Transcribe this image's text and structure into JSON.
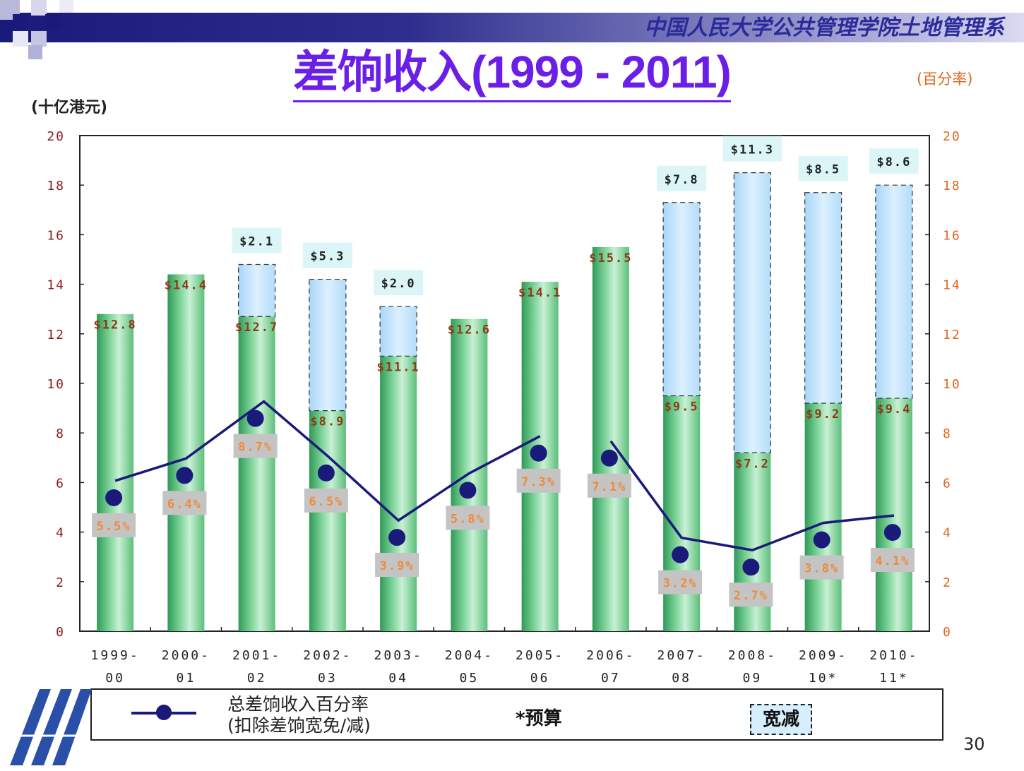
{
  "header": {
    "department": "中国人民大学公共管理学院土地管理系",
    "title": "差饷收入(1999 - 2011)",
    "left_unit": "(十亿港元)",
    "right_unit": "(百分率)"
  },
  "legend": {
    "line_label": "总差饷收入百分率\n(扣除差饷宽免/减)",
    "budget_note": "*预算",
    "relief_label": "宽减"
  },
  "page_number": "30",
  "colors": {
    "bar_green": "#5cbf7a",
    "relief_blue": "#cfe9fc",
    "line_navy": "#1a1a7a",
    "value_brown": "#8b3a14",
    "pct_orange": "#f08a3a",
    "title_purple": "#6a1ee8"
  },
  "chart_data": {
    "type": "bar",
    "categories": [
      [
        "1999-",
        "00"
      ],
      [
        "2000-",
        "01"
      ],
      [
        "2001-",
        "02"
      ],
      [
        "2002-",
        "03"
      ],
      [
        "2003-",
        "04"
      ],
      [
        "2004-",
        "05"
      ],
      [
        "2005-",
        "06"
      ],
      [
        "2006-",
        "07"
      ],
      [
        "2007-",
        "08"
      ],
      [
        "2008-",
        "09"
      ],
      [
        "2009-",
        "10*"
      ],
      [
        "2010-",
        "11*"
      ]
    ],
    "ylim": [
      0,
      20
    ],
    "y_ticks": [
      "0",
      "2",
      "4",
      "6",
      "8",
      "10",
      "12",
      "14",
      "16",
      "18",
      "20"
    ],
    "y2lim": [
      0,
      20
    ],
    "y2_ticks": [
      "0",
      "2",
      "4",
      "6",
      "8",
      "10",
      "12",
      "14",
      "16",
      "18",
      "20"
    ],
    "series": [
      {
        "name": "",
        "values": [
          12.8,
          14.4,
          12.7,
          8.9,
          11.1,
          12.6,
          14.1,
          15.5,
          9.5,
          7.2,
          9.2,
          9.4
        ],
        "labels": [
          "$12.8",
          "$14.4",
          "$12.7",
          "$8.9",
          "$11.1",
          "$12.6",
          "$14.1",
          "$15.5",
          "$9.5",
          "$7.2",
          "$9.2",
          "$9.4"
        ]
      },
      {
        "name": "宽减",
        "values": [
          0,
          0,
          2.1,
          5.3,
          2.0,
          0,
          0,
          0,
          7.8,
          11.3,
          8.5,
          8.6
        ],
        "labels": [
          "",
          "",
          "$2.1",
          "$5.3",
          "$2.0",
          "",
          "",
          "",
          "$7.8",
          "$11.3",
          "$8.5",
          "$8.6"
        ]
      },
      {
        "name": "总差饷收入百分率(扣除差饷宽免/减)",
        "axis": "right",
        "values": [
          5.5,
          6.4,
          8.7,
          6.5,
          3.9,
          5.8,
          7.3,
          7.1,
          3.2,
          2.7,
          3.8,
          4.1
        ],
        "labels": [
          "5.5%",
          "6.4%",
          "8.7%",
          "6.5%",
          "3.9%",
          "5.8%",
          "7.3%",
          "7.1%",
          "3.2%",
          "2.7%",
          "3.8%",
          "4.1%"
        ]
      }
    ]
  }
}
